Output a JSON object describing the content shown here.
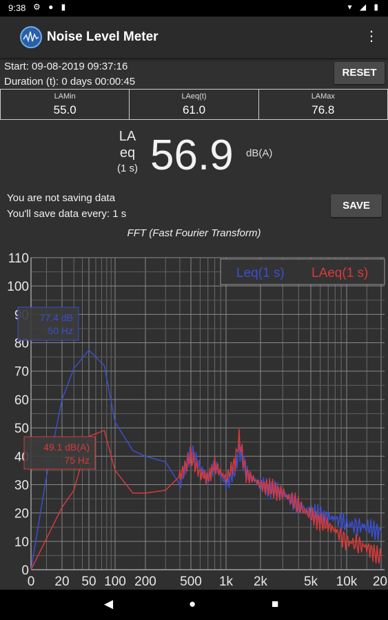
{
  "status": {
    "time": "9:38",
    "left_icons": "⚙ ● ▮",
    "right_icons": "▾ ◢ ▮"
  },
  "app": {
    "title": "Noise Level Meter",
    "menu_icon": "more-vert"
  },
  "session": {
    "start": "Start: 09-08-2019 09:37:16",
    "duration": "Duration (t): 0 days 00:00:45",
    "reset_label": "RESET"
  },
  "stats": [
    {
      "label": "LAMin",
      "value": "55.0"
    },
    {
      "label": "LAeq(t)",
      "value": "61.0"
    },
    {
      "label": "LAMax",
      "value": "76.8"
    }
  ],
  "reading": {
    "label_line1": "LA",
    "label_line2": "eq",
    "label_line3": "(1 s)",
    "value": "56.9",
    "unit": "dB(A)"
  },
  "saving": {
    "line1": "You are not saving data",
    "line2": "You'll save data every: 1 s",
    "save_label": "SAVE"
  },
  "chart_title": "FFT (Fast Fourier Transform)",
  "chart_data": {
    "type": "line",
    "x_scale": "log-like",
    "x_ticks": [
      "0",
      "20",
      "50",
      "100",
      "200",
      "500",
      "1k",
      "2k",
      "5k",
      "10k",
      "20"
    ],
    "y_ticks": [
      "0",
      "10",
      "20",
      "30",
      "40",
      "50",
      "60",
      "70",
      "80",
      "90",
      "100",
      "110"
    ],
    "ylim": [
      0,
      110
    ],
    "grid": true,
    "legend_placement": "top-right",
    "series": [
      {
        "name": "Leq(1 s)",
        "color": "#3a4fd0",
        "points": [
          [
            0,
            0
          ],
          [
            10,
            33
          ],
          [
            20,
            60
          ],
          [
            30,
            71
          ],
          [
            50,
            77.4
          ],
          [
            75,
            72
          ],
          [
            100,
            52
          ],
          [
            150,
            42
          ],
          [
            200,
            40
          ],
          [
            300,
            38
          ],
          [
            400,
            30
          ],
          [
            500,
            42
          ],
          [
            600,
            36
          ],
          [
            700,
            32
          ],
          [
            800,
            37
          ],
          [
            1000,
            30
          ],
          [
            1200,
            35
          ],
          [
            1300,
            43
          ],
          [
            1500,
            34
          ],
          [
            2000,
            30
          ],
          [
            3000,
            27
          ],
          [
            5000,
            20
          ],
          [
            8000,
            18
          ],
          [
            10000,
            16
          ],
          [
            15000,
            15
          ],
          [
            20000,
            13
          ]
        ]
      },
      {
        "name": "LAeq(1 s)",
        "color": "#d83a3a",
        "points": [
          [
            0,
            0
          ],
          [
            10,
            11
          ],
          [
            20,
            22
          ],
          [
            30,
            28
          ],
          [
            50,
            47
          ],
          [
            75,
            49.1
          ],
          [
            100,
            35
          ],
          [
            150,
            27
          ],
          [
            200,
            27
          ],
          [
            300,
            28
          ],
          [
            400,
            33
          ],
          [
            500,
            40
          ],
          [
            600,
            34
          ],
          [
            700,
            32
          ],
          [
            800,
            37
          ],
          [
            1000,
            32
          ],
          [
            1200,
            38
          ],
          [
            1300,
            46
          ],
          [
            1500,
            34
          ],
          [
            2000,
            30
          ],
          [
            3000,
            27
          ],
          [
            5000,
            19
          ],
          [
            8000,
            14
          ],
          [
            10000,
            10
          ],
          [
            15000,
            8
          ],
          [
            20000,
            4
          ]
        ]
      }
    ],
    "annotations": [
      {
        "text1": "77.4 dB",
        "text2": "50 Hz",
        "color": "#3a4fd0"
      },
      {
        "text1": "49.1 dB(A)",
        "text2": "75 Hz",
        "color": "#d83a3a"
      }
    ]
  },
  "nav": {
    "back": "◀",
    "home": "●",
    "recents": "■"
  }
}
